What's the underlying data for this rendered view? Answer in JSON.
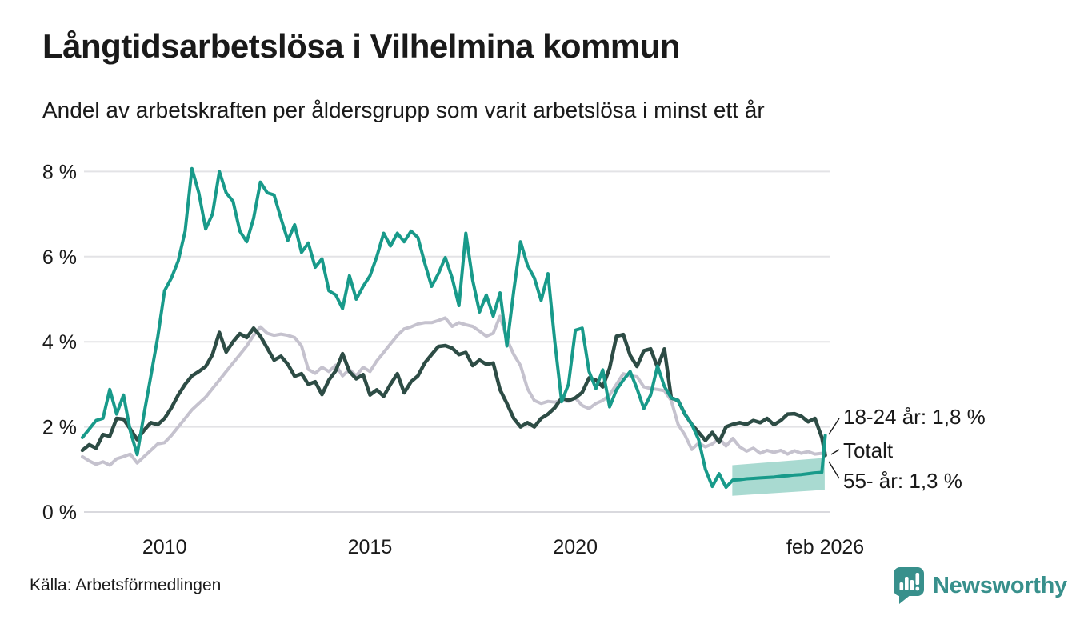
{
  "chart_data": {
    "type": "line",
    "title": "Långtidsarbetslösa i Vilhelmina kommun",
    "subtitle": "Andel av arbetskraften per åldersgrupp som varit arbetslösa i minst ett år",
    "source": "Källa: Arbetsförmedlingen",
    "grid": true,
    "legend_position": "end-of-line-labels",
    "x_range": [
      2008,
      2026.083
    ],
    "y_range": [
      0,
      8.6
    ],
    "x_start": 2008,
    "x_step_years": 0.166667,
    "x_final": 2026.083,
    "y_axis": {
      "values": [
        8,
        6,
        4,
        2,
        0
      ],
      "ticks": [
        "8 %",
        "6 %",
        "4 %",
        "2 %",
        "0 %"
      ]
    },
    "x_axis": {
      "ticks": [
        {
          "label": "2010",
          "year": 2010
        },
        {
          "label": "2015",
          "year": 2015
        },
        {
          "label": "2020",
          "year": 2020
        },
        {
          "label": "feb 2026",
          "year": 2026.083
        }
      ]
    },
    "series": [
      {
        "name": "Totalt",
        "color": "#c5c2ce",
        "last_value": 1.4,
        "values": [
          1.3,
          1.2,
          1.12,
          1.18,
          1.1,
          1.25,
          1.3,
          1.36,
          1.15,
          1.3,
          1.45,
          1.6,
          1.63,
          1.8,
          2.0,
          2.2,
          2.4,
          2.55,
          2.7,
          2.9,
          3.1,
          3.3,
          3.5,
          3.7,
          3.9,
          4.15,
          4.35,
          4.2,
          4.15,
          4.18,
          4.15,
          4.1,
          3.9,
          3.35,
          3.26,
          3.4,
          3.3,
          3.45,
          3.2,
          3.35,
          3.2,
          3.4,
          3.3,
          3.55,
          3.75,
          3.95,
          4.15,
          4.3,
          4.35,
          4.42,
          4.45,
          4.45,
          4.5,
          4.56,
          4.36,
          4.45,
          4.4,
          4.36,
          4.25,
          4.13,
          4.2,
          4.6,
          4.06,
          3.7,
          3.44,
          2.9,
          2.62,
          2.55,
          2.6,
          2.58,
          2.62,
          2.6,
          2.68,
          2.5,
          2.43,
          2.55,
          2.62,
          2.75,
          3.0,
          3.25,
          3.2,
          3.18,
          2.94,
          2.9,
          2.88,
          2.85,
          2.62,
          2.06,
          1.81,
          1.47,
          1.62,
          1.53,
          1.6,
          1.73,
          1.55,
          1.73,
          1.53,
          1.43,
          1.5,
          1.38,
          1.45,
          1.4,
          1.45,
          1.36,
          1.44,
          1.38,
          1.42,
          1.36,
          1.38,
          1.4
        ]
      },
      {
        "name": "55- år",
        "color": "#2d4c45",
        "last_value": 1.3,
        "values": [
          1.45,
          1.58,
          1.5,
          1.82,
          1.78,
          2.2,
          2.18,
          1.95,
          1.7,
          1.92,
          2.1,
          2.05,
          2.2,
          2.45,
          2.75,
          3.0,
          3.2,
          3.3,
          3.42,
          3.7,
          4.22,
          3.76,
          4.0,
          4.19,
          4.1,
          4.32,
          4.13,
          3.85,
          3.57,
          3.66,
          3.47,
          3.19,
          3.25,
          3.0,
          3.06,
          2.76,
          3.1,
          3.32,
          3.72,
          3.3,
          3.13,
          3.23,
          2.75,
          2.87,
          2.72,
          3.0,
          3.25,
          2.8,
          3.06,
          3.2,
          3.5,
          3.7,
          3.89,
          3.91,
          3.85,
          3.7,
          3.75,
          3.44,
          3.57,
          3.47,
          3.5,
          2.87,
          2.55,
          2.2,
          2.0,
          2.1,
          2.0,
          2.2,
          2.3,
          2.45,
          2.68,
          2.62,
          2.68,
          2.81,
          3.15,
          3.1,
          2.94,
          3.38,
          4.13,
          4.17,
          3.68,
          3.42,
          3.79,
          3.83,
          3.4,
          3.83,
          2.68,
          2.62,
          2.3,
          2.06,
          1.87,
          1.68,
          1.87,
          1.64,
          2.0,
          2.06,
          2.1,
          2.06,
          2.15,
          2.1,
          2.2,
          2.05,
          2.15,
          2.3,
          2.31,
          2.25,
          2.12,
          2.2,
          1.75,
          1.33
        ]
      },
      {
        "name": "18-24 år",
        "color": "#189a8a",
        "last_value": 1.8,
        "values": [
          1.75,
          1.95,
          2.15,
          2.2,
          2.88,
          2.3,
          2.75,
          1.9,
          1.35,
          2.3,
          3.2,
          4.1,
          5.2,
          5.5,
          5.9,
          6.6,
          8.07,
          7.5,
          6.65,
          7.0,
          8.0,
          7.5,
          7.3,
          6.6,
          6.35,
          6.9,
          7.75,
          7.5,
          7.45,
          6.9,
          6.38,
          6.75,
          6.1,
          6.32,
          5.75,
          5.95,
          5.2,
          5.1,
          4.78,
          5.55,
          5.0,
          5.3,
          5.55,
          6.0,
          6.55,
          6.25,
          6.55,
          6.35,
          6.6,
          6.45,
          5.85,
          5.3,
          5.6,
          5.98,
          5.5,
          4.85,
          6.55,
          5.45,
          4.7,
          5.1,
          4.6,
          5.15,
          3.9,
          5.2,
          6.35,
          5.8,
          5.5,
          4.97,
          5.6,
          4.0,
          2.59,
          3.0,
          4.27,
          4.32,
          3.3,
          2.9,
          3.34,
          2.47,
          2.87,
          3.1,
          3.3,
          2.9,
          2.43,
          2.75,
          3.43,
          2.95,
          2.68,
          2.62,
          2.3,
          2.06,
          1.7,
          1.0,
          0.6,
          0.9,
          0.58,
          0.75,
          0.76,
          0.78,
          0.79,
          0.8,
          0.81,
          0.82,
          0.84,
          0.85,
          0.87,
          0.88,
          0.9,
          0.92,
          0.93,
          1.8
        ]
      }
    ],
    "trend_band": {
      "series": "18-24 år",
      "color": "#a9dad1",
      "x": [
        2023.82,
        2026.07
      ],
      "top": [
        1.1,
        1.27
      ],
      "bottom": [
        0.38,
        0.52
      ]
    },
    "annotations": [
      {
        "text": "18-24 år: 1,8 %"
      },
      {
        "text": "Totalt"
      },
      {
        "text": "55- år: 1,3 %"
      }
    ]
  },
  "footer": {
    "brand": "Newsworthy"
  },
  "colors": {
    "accent_teal": "#189a8a",
    "dark_green": "#2d4c45",
    "light_gray": "#c5c2ce",
    "band_teal": "#a9dad1",
    "brand_teal": "#38908c",
    "gridline": "#e3e3e6",
    "text": "#1a1a1a"
  }
}
